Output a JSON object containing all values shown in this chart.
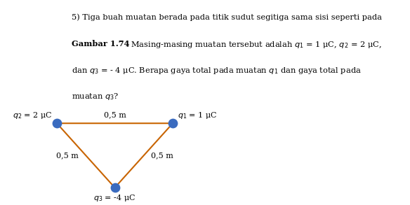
{
  "background_color": "#ffffff",
  "text_block": {
    "line1": "5) Tiga buah muatan berada pada titik sudut segitiga sama sisi seperti pada",
    "line2_bold": "Gambar 1.74",
    "line2_rest": ". Masing-masing muatan tersebut adalah $q_1$ = 1 μC, $q_2$ = 2 μC,",
    "line3": "dan $q_3$ = - 4 μC. Berapa gaya total pada muatan $q_1$ dan gaya total pada",
    "line4": "muatan $q_3$?"
  },
  "triangle": {
    "q2": [
      0.0,
      0.0
    ],
    "q1": [
      1.0,
      0.0
    ],
    "q3": [
      0.5,
      -0.866
    ],
    "edge_color": "#c86400",
    "edge_linewidth": 1.5,
    "dot_color": "#3a6bbf",
    "dot_size": 80
  },
  "labels": {
    "q2_text": "$q_2$ = 2 μC",
    "q1_text": "$q_1$ = 1 μC",
    "q3_text": "$q_3$ = -4 μC",
    "top_edge": "0,5 m",
    "left_edge": "0,5 m",
    "right_edge": "0,5 m"
  },
  "fontsize_text": 8.2,
  "fontsize_label": 8.0
}
